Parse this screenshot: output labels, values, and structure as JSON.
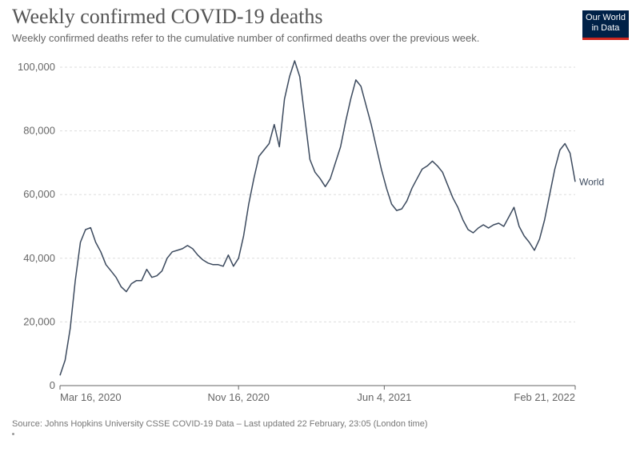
{
  "header": {
    "title": "Weekly confirmed COVID-19 deaths",
    "subtitle": "Weekly confirmed deaths refer to the cumulative number of confirmed deaths over the previous week."
  },
  "logo": {
    "line1": "Our World",
    "line2": "in Data",
    "bg_color": "#002147",
    "bar_color": "#ce261e"
  },
  "footer": {
    "source": "Source: Johns Hopkins University CSSE COVID-19 Data – Last updated 22 February, 23:05 (London time)"
  },
  "colors": {
    "line": "#3c4a5e",
    "grid": "#dddddd",
    "axis": "#666666"
  },
  "chart_data": {
    "type": "line",
    "title": "Weekly confirmed COVID-19 deaths",
    "xlabel": "",
    "ylabel": "",
    "ylim": [
      0,
      100000
    ],
    "yticks": [
      0,
      20000,
      40000,
      60000,
      80000,
      100000
    ],
    "ytick_labels": [
      "0",
      "20,000",
      "40,000",
      "60,000",
      "80,000",
      "100,000"
    ],
    "xticks": [
      "2020-03-16",
      "2020-11-16",
      "2021-06-04",
      "2022-02-21"
    ],
    "xtick_labels": [
      "Mar 16, 2020",
      "Nov 16, 2020",
      "Jun 4, 2021",
      "Feb 21, 2022"
    ],
    "grid": "horizontal dashed",
    "series": [
      {
        "name": "World",
        "points": [
          [
            "2020-03-16",
            3200
          ],
          [
            "2020-03-23",
            8000
          ],
          [
            "2020-03-30",
            18000
          ],
          [
            "2020-04-06",
            33000
          ],
          [
            "2020-04-13",
            45000
          ],
          [
            "2020-04-20",
            49000
          ],
          [
            "2020-04-27",
            49600
          ],
          [
            "2020-05-04",
            45000
          ],
          [
            "2020-05-11",
            42000
          ],
          [
            "2020-05-18",
            38000
          ],
          [
            "2020-05-25",
            36000
          ],
          [
            "2020-06-01",
            34000
          ],
          [
            "2020-06-08",
            31000
          ],
          [
            "2020-06-15",
            29500
          ],
          [
            "2020-06-22",
            32000
          ],
          [
            "2020-06-29",
            33000
          ],
          [
            "2020-07-06",
            33000
          ],
          [
            "2020-07-13",
            36500
          ],
          [
            "2020-07-20",
            34000
          ],
          [
            "2020-07-27",
            34500
          ],
          [
            "2020-08-03",
            36000
          ],
          [
            "2020-08-10",
            40000
          ],
          [
            "2020-08-17",
            42000
          ],
          [
            "2020-08-24",
            42500
          ],
          [
            "2020-08-31",
            43000
          ],
          [
            "2020-09-07",
            44000
          ],
          [
            "2020-09-14",
            43000
          ],
          [
            "2020-09-21",
            41000
          ],
          [
            "2020-09-28",
            39500
          ],
          [
            "2020-10-05",
            38500
          ],
          [
            "2020-10-12",
            38000
          ],
          [
            "2020-10-19",
            38000
          ],
          [
            "2020-10-26",
            37500
          ],
          [
            "2020-11-02",
            41000
          ],
          [
            "2020-11-09",
            37500
          ],
          [
            "2020-11-16",
            40000
          ],
          [
            "2020-11-23",
            47000
          ],
          [
            "2020-11-30",
            57000
          ],
          [
            "2020-12-07",
            65000
          ],
          [
            "2020-12-14",
            72000
          ],
          [
            "2020-12-21",
            74000
          ],
          [
            "2020-12-28",
            76000
          ],
          [
            "2021-01-04",
            82000
          ],
          [
            "2021-01-11",
            75000
          ],
          [
            "2021-01-18",
            90000
          ],
          [
            "2021-01-25",
            97000
          ],
          [
            "2021-02-01",
            102000
          ],
          [
            "2021-02-08",
            97000
          ],
          [
            "2021-02-15",
            84000
          ],
          [
            "2021-02-22",
            71000
          ],
          [
            "2021-03-01",
            67000
          ],
          [
            "2021-03-08",
            65000
          ],
          [
            "2021-03-15",
            62500
          ],
          [
            "2021-03-22",
            65000
          ],
          [
            "2021-03-29",
            70000
          ],
          [
            "2021-04-05",
            75000
          ],
          [
            "2021-04-12",
            83000
          ],
          [
            "2021-04-19",
            90000
          ],
          [
            "2021-04-26",
            96000
          ],
          [
            "2021-05-03",
            94000
          ],
          [
            "2021-05-10",
            88000
          ],
          [
            "2021-05-17",
            82000
          ],
          [
            "2021-05-24",
            75000
          ],
          [
            "2021-05-31",
            68000
          ],
          [
            "2021-06-07",
            62000
          ],
          [
            "2021-06-14",
            57000
          ],
          [
            "2021-06-21",
            55000
          ],
          [
            "2021-06-28",
            55500
          ],
          [
            "2021-07-05",
            58000
          ],
          [
            "2021-07-12",
            62000
          ],
          [
            "2021-07-19",
            65000
          ],
          [
            "2021-07-26",
            68000
          ],
          [
            "2021-08-02",
            69000
          ],
          [
            "2021-08-09",
            70500
          ],
          [
            "2021-08-16",
            69000
          ],
          [
            "2021-08-23",
            67000
          ],
          [
            "2021-08-30",
            63000
          ],
          [
            "2021-09-06",
            59000
          ],
          [
            "2021-09-13",
            56000
          ],
          [
            "2021-09-20",
            52000
          ],
          [
            "2021-09-27",
            49000
          ],
          [
            "2021-10-04",
            48000
          ],
          [
            "2021-10-11",
            49500
          ],
          [
            "2021-10-18",
            50500
          ],
          [
            "2021-10-25",
            49500
          ],
          [
            "2021-11-01",
            50500
          ],
          [
            "2021-11-08",
            51000
          ],
          [
            "2021-11-15",
            50000
          ],
          [
            "2021-11-22",
            53000
          ],
          [
            "2021-11-29",
            56000
          ],
          [
            "2021-12-06",
            50000
          ],
          [
            "2021-12-13",
            47000
          ],
          [
            "2021-12-20",
            45000
          ],
          [
            "2021-12-27",
            42500
          ],
          [
            "2022-01-03",
            46000
          ],
          [
            "2022-01-10",
            52000
          ],
          [
            "2022-01-17",
            60000
          ],
          [
            "2022-01-24",
            68000
          ],
          [
            "2022-01-31",
            74000
          ],
          [
            "2022-02-07",
            76000
          ],
          [
            "2022-02-14",
            73000
          ],
          [
            "2022-02-21",
            64000
          ]
        ]
      }
    ]
  }
}
